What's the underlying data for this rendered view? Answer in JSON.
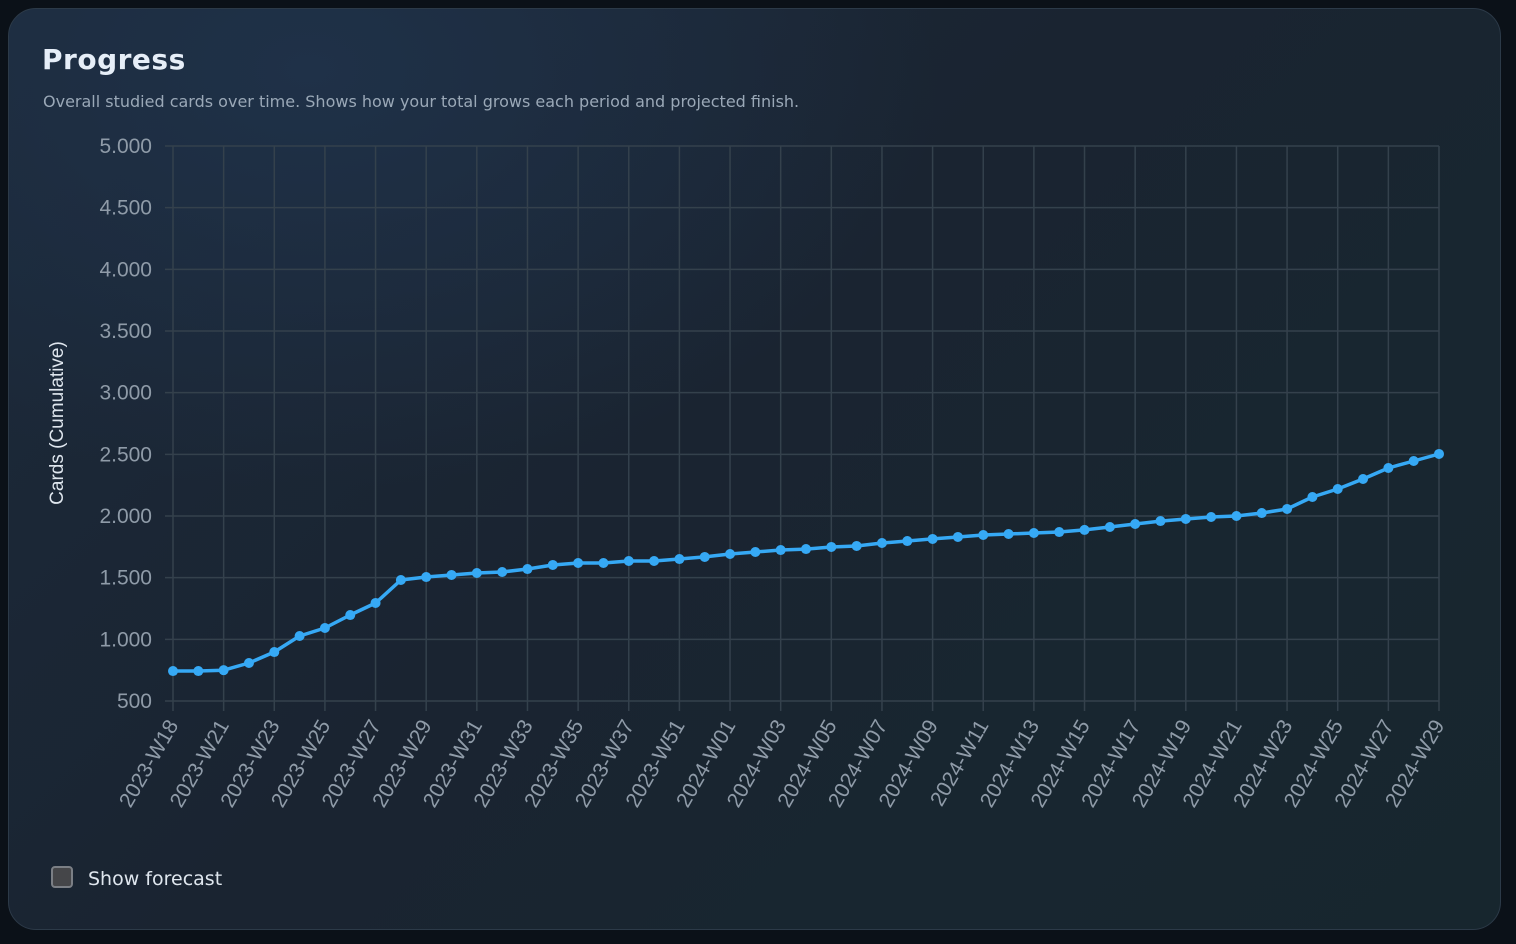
{
  "card": {
    "title": "Progress",
    "subtitle": "Overall studied cards over time. Shows how your total grows each period and projected finish."
  },
  "controls": {
    "show_forecast_label": "Show forecast",
    "show_forecast_checked": false
  },
  "colors": {
    "line": "#36a9f5",
    "grid": "#34414c",
    "tick_text": "#8f9ba8",
    "axis_title": "#dfe6ee"
  },
  "chart_data": {
    "type": "line",
    "title": "Progress",
    "xlabel": "",
    "ylabel": "Cards (Cumulative)",
    "ylim": [
      500,
      5000
    ],
    "yticks": [
      500,
      1000,
      1500,
      2000,
      2500,
      3000,
      3500,
      4000,
      4500,
      5000
    ],
    "ytick_labels": [
      "500",
      "1.000",
      "1.500",
      "2.000",
      "2.500",
      "3.000",
      "3.500",
      "4.000",
      "4.500",
      "5.000"
    ],
    "x_tick_labels": [
      "2023-W18",
      "2023-W21",
      "2023-W23",
      "2023-W25",
      "2023-W27",
      "2023-W29",
      "2023-W31",
      "2023-W33",
      "2023-W35",
      "2023-W37",
      "2023-W51",
      "2024-W01",
      "2024-W03",
      "2024-W05",
      "2024-W07",
      "2024-W09",
      "2024-W11",
      "2024-W13",
      "2024-W15",
      "2024-W17",
      "2024-W19",
      "2024-W21",
      "2024-W23",
      "2024-W25",
      "2024-W27",
      "2024-W29"
    ],
    "x_tick_every_n_points": 2,
    "grid": true,
    "legend": null,
    "series": [
      {
        "name": "Cards (Cumulative)",
        "values": [
          743,
          743,
          750,
          808,
          897,
          1027,
          1092,
          1197,
          1295,
          1481,
          1505,
          1522,
          1538,
          1546,
          1570,
          1603,
          1619,
          1619,
          1635,
          1635,
          1651,
          1668,
          1692,
          1708,
          1724,
          1732,
          1749,
          1757,
          1781,
          1797,
          1814,
          1830,
          1846,
          1854,
          1862,
          1870,
          1887,
          1911,
          1935,
          1959,
          1976,
          1992,
          2000,
          2024,
          2057,
          2154,
          2219,
          2300,
          2389,
          2446,
          2503
        ]
      }
    ]
  }
}
